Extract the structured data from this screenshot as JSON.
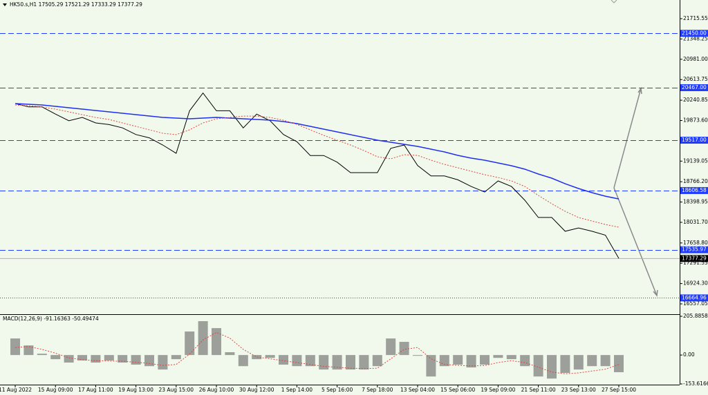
{
  "chart_data": [
    {
      "type": "line",
      "title": "HK50.s,H1  17505.29 17521.29 17333.29 17377.29",
      "categories": [
        "11 Aug 2022",
        null,
        null,
        "15 Aug 09:00",
        null,
        null,
        "17 Aug 11:00",
        null,
        null,
        "19 Aug 13:00",
        null,
        null,
        "23 Aug 15:00",
        null,
        null,
        "26 Aug 10:00",
        null,
        null,
        "30 Aug 12:00",
        null,
        null,
        "1 Sep 14:00",
        null,
        null,
        "5 Sep 16:00",
        null,
        null,
        "7 Sep 18:00",
        null,
        null,
        "13 Sep 04:00",
        null,
        null,
        "15 Sep 06:00",
        null,
        null,
        "19 Sep 09:00",
        null,
        null,
        "21 Sep 11:00",
        null,
        null,
        "23 Sep 13:00",
        null,
        null,
        "27 Sep 15:00"
      ],
      "series": [
        {
          "color": "#000000",
          "style": "solid",
          "values": [
            20180,
            20120,
            20120,
            19990,
            19870,
            19930,
            19830,
            19800,
            19740,
            19620,
            19560,
            19430,
            19280,
            20050,
            20370,
            20050,
            20050,
            19740,
            19990,
            19870,
            19620,
            19490,
            19240,
            19240,
            19120,
            18930,
            18930,
            18930,
            19370,
            19430,
            19060,
            18870,
            18870,
            18800,
            18680,
            18580,
            18780,
            18680,
            18430,
            18120,
            18120,
            17870,
            17930,
            17870,
            17800,
            17380
          ]
        },
        {
          "color": "#1f2ef0",
          "style": "solid",
          "values": [
            20180,
            20167,
            20155,
            20130,
            20105,
            20080,
            20055,
            20030,
            20005,
            19980,
            19955,
            19930,
            19917,
            19905,
            19917,
            19930,
            19917,
            19905,
            19892,
            19880,
            19855,
            19817,
            19767,
            19717,
            19667,
            19617,
            19567,
            19517,
            19480,
            19442,
            19405,
            19355,
            19305,
            19243,
            19193,
            19155,
            19105,
            19055,
            18993,
            18905,
            18830,
            18730,
            18643,
            18568,
            18505,
            18455
          ]
        },
        {
          "color": "#e0463c",
          "style": "dotted",
          "values": [
            20154,
            20142,
            20117,
            20079,
            20029,
            19979,
            19929,
            19892,
            19830,
            19767,
            19705,
            19642,
            19617,
            19705,
            19830,
            19904,
            19929,
            19954,
            19954,
            19929,
            19879,
            19804,
            19705,
            19605,
            19517,
            19430,
            19330,
            19218,
            19180,
            19255,
            19243,
            19155,
            19080,
            19018,
            18955,
            18893,
            18843,
            18780,
            18680,
            18518,
            18368,
            18231,
            18118,
            18056,
            17993,
            17944
          ]
        }
      ],
      "ylim": [
        16370,
        22053
      ],
      "yticks": [
        21715.55,
        21348.25,
        {
          "value": 20981,
          "label": "20981.00"
        },
        20613.75,
        20240.85,
        {
          "value": 19873.6,
          "label": "19873.60"
        },
        19139.05,
        {
          "value": 18766.2,
          "label": "18766.20"
        },
        18398.95,
        {
          "value": 18031.7,
          "label": "18031.70"
        },
        {
          "value": 17658.8,
          "label": "17658.80"
        },
        17291.55,
        {
          "value": 16924.3,
          "label": "16924.30"
        },
        16557.05
      ],
      "levels": [
        {
          "value": 21450,
          "label": "21450.00"
        },
        {
          "value": 20467,
          "label": "20467.00"
        },
        {
          "value": 19517,
          "label": "19517.00"
        },
        18606.58,
        17535.97,
        16664.96
      ],
      "level_styles": [
        "dashed",
        "dashed",
        "dashed",
        "dashed",
        "dashed",
        "dotted"
      ],
      "level_color": "#1f3cff",
      "current_price": 17377.29
    },
    {
      "type": "bar",
      "title": "MACD(12,26,9) -91.16363 -50.49474",
      "series": [
        {
          "type": "bar",
          "color": "#808080",
          "values": [
            88,
            51,
            7,
            -22,
            -40,
            -29,
            -40,
            -29,
            -40,
            -51,
            -59,
            -77,
            -22,
            125,
            180,
            143,
            15,
            -59,
            -22,
            -15,
            -51,
            -59,
            -59,
            -77,
            -77,
            -77,
            -77,
            -59,
            88,
            70,
            -4,
            -114,
            -59,
            -51,
            -66,
            -51,
            -15,
            -22,
            -59,
            -114,
            -125,
            -95,
            -77,
            -59,
            -59,
            -91.16363
          ]
        },
        {
          "type": "line",
          "color": "#e0463c",
          "values": [
            40,
            45,
            30,
            10,
            -15,
            -25,
            -30,
            -32,
            -33,
            -38,
            -45,
            -55,
            -50,
            5,
            80,
            120,
            90,
            30,
            -10,
            -20,
            -30,
            -40,
            -50,
            -60,
            -65,
            -70,
            -72,
            -70,
            -20,
            30,
            40,
            -20,
            -50,
            -55,
            -58,
            -56,
            -40,
            -30,
            -40,
            -65,
            -90,
            -100,
            -95,
            -85,
            -75,
            -50.49474
          ]
        }
      ],
      "ylim": [
        -153.61665,
        205.88584
      ],
      "yticks": [
        205.88584,
        {
          "value": 0,
          "label": "0.00"
        },
        -153.61665
      ]
    }
  ]
}
